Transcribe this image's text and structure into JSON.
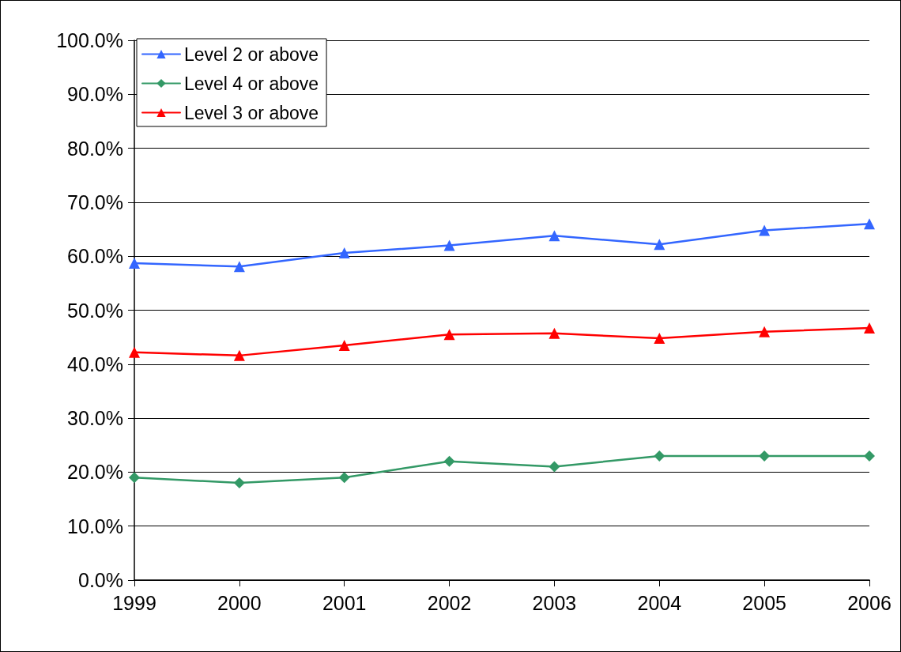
{
  "chart_data": {
    "type": "line",
    "categories": [
      "1999",
      "2000",
      "2001",
      "2002",
      "2003",
      "2004",
      "2005",
      "2006"
    ],
    "series": [
      {
        "name": "Level 2 or above",
        "color": "#3366ff",
        "marker": "triangle",
        "values": [
          58.7,
          58.1,
          60.6,
          62.0,
          63.8,
          62.2,
          64.8,
          66.0
        ]
      },
      {
        "name": "Level 4 or above",
        "color": "#339966",
        "marker": "diamond",
        "values": [
          19,
          18,
          19,
          22,
          21,
          23,
          23,
          23
        ]
      },
      {
        "name": "Level 3 or above",
        "color": "#ff0000",
        "marker": "triangle",
        "values": [
          42.2,
          41.6,
          43.5,
          45.5,
          45.7,
          44.8,
          46.0,
          46.7
        ]
      }
    ],
    "ylim": [
      0,
      100
    ],
    "yticks": [
      {
        "value": 0,
        "label": "0.0%"
      },
      {
        "value": 10,
        "label": "10.0%"
      },
      {
        "value": 20,
        "label": "20.0%"
      },
      {
        "value": 30,
        "label": "30.0%"
      },
      {
        "value": 40,
        "label": "40.0%"
      },
      {
        "value": 50,
        "label": "50.0%"
      },
      {
        "value": 60,
        "label": "60.0%"
      },
      {
        "value": 70,
        "label": "70.0%"
      },
      {
        "value": 80,
        "label": "80.0%"
      },
      {
        "value": 90,
        "label": "90.0%"
      },
      {
        "value": 100,
        "label": "100.0%"
      }
    ],
    "grid": "y",
    "legend": "top left",
    "line_style": "solid"
  }
}
